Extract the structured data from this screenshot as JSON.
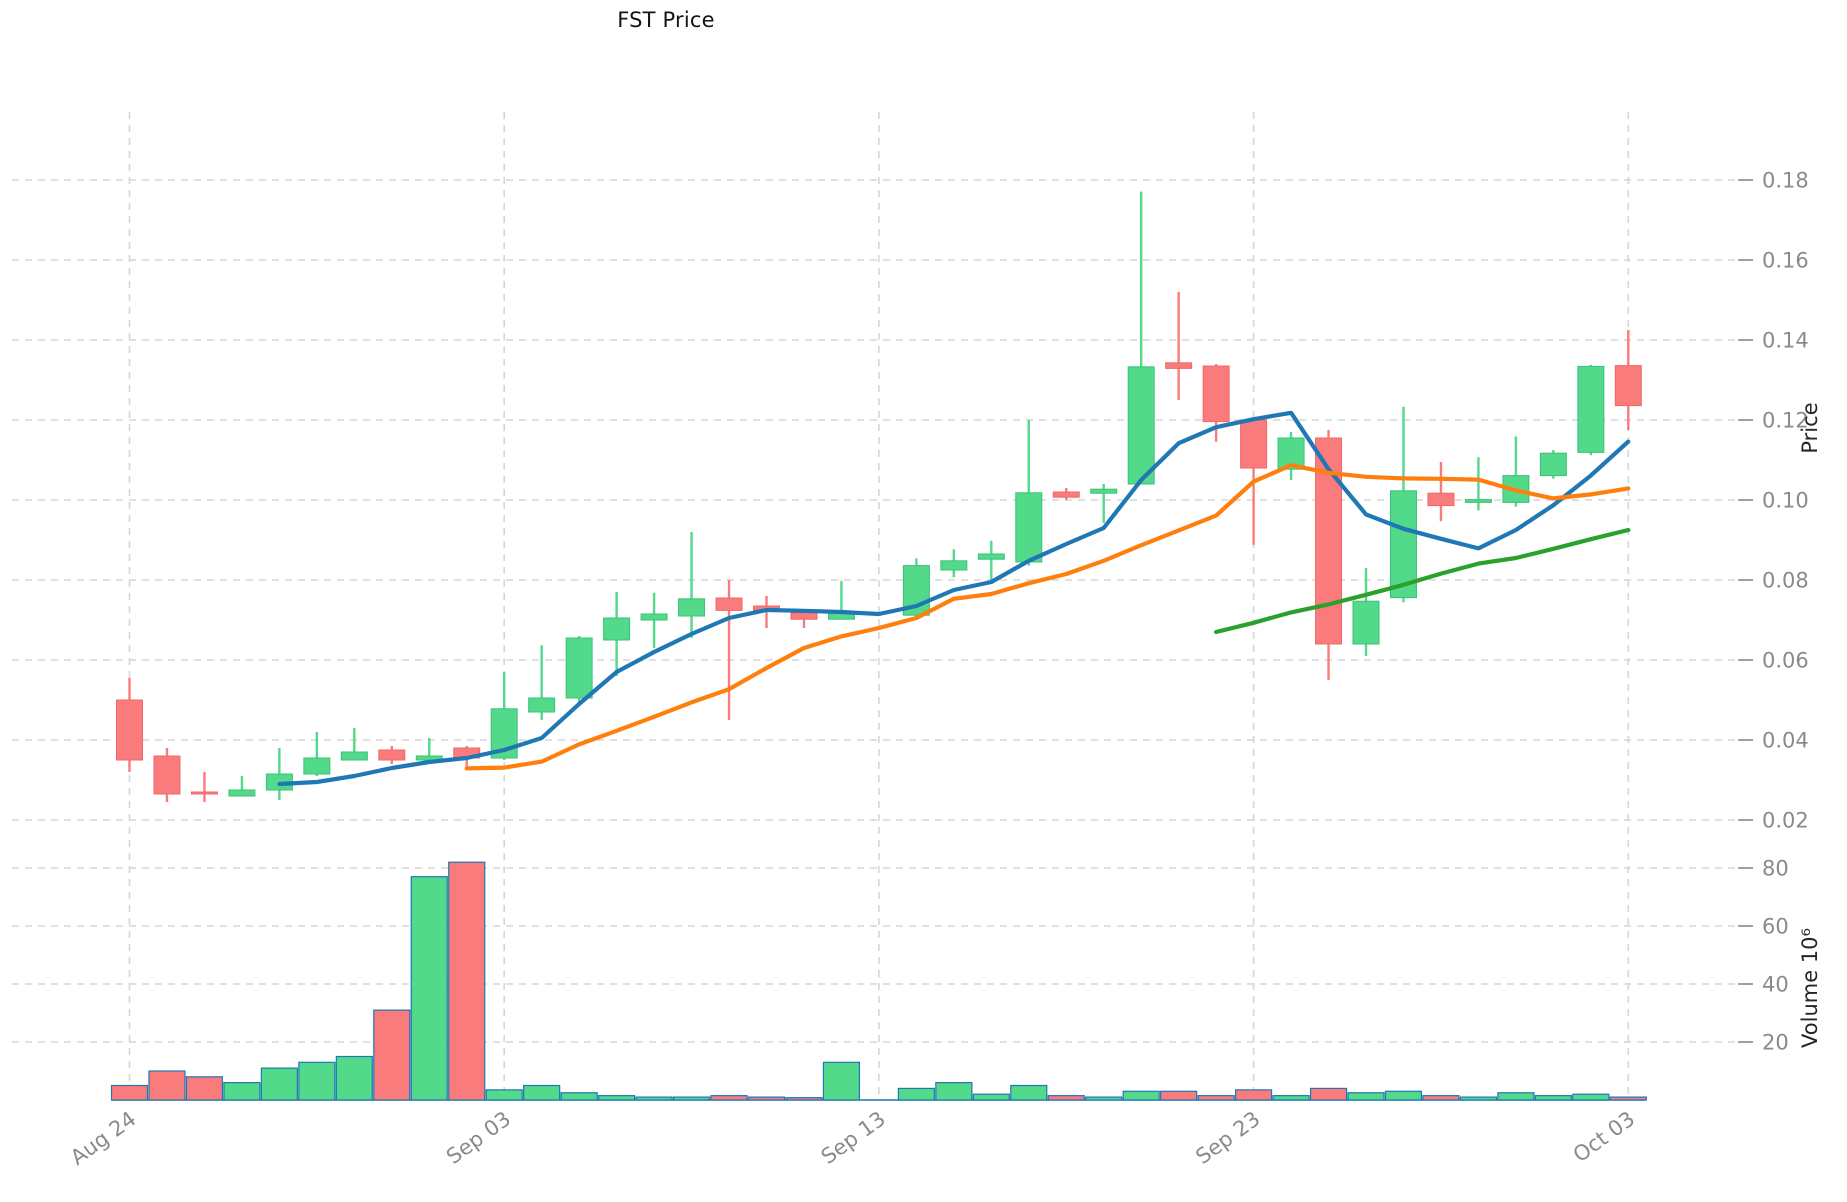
{
  "title": "FST Price",
  "axes": {
    "price_label": "Price",
    "volume_label": "Volume  10⁶",
    "price_ticks": [
      0.18,
      0.16,
      0.14,
      0.12,
      0.1,
      0.08,
      0.06,
      0.04,
      0.02
    ],
    "volume_ticks": [
      80,
      60,
      40,
      20
    ],
    "date_ticks": [
      {
        "label": "Aug 24",
        "index": 0
      },
      {
        "label": "Sep 03",
        "index": 10
      },
      {
        "label": "Sep 13",
        "index": 20
      },
      {
        "label": "Sep 23",
        "index": 30
      },
      {
        "label": "Oct 03",
        "index": 40
      }
    ]
  },
  "colors": {
    "up": "#52d98a",
    "down": "#f97b7b",
    "up_edge": "#3cc176",
    "down_edge": "#f06868",
    "sma5": "#1f77b4",
    "sma10": "#ff7f0e",
    "sma30": "#2ca02c",
    "volume_bar_edge": "#1f77b4",
    "grid": "#d6d6d6",
    "tick_text": "#8a8a8a"
  },
  "chart_data": {
    "type": "candlestick+volume",
    "title": "FST Price",
    "ylabel_right": "Price",
    "ylabel_volume": "Volume 10^6",
    "price_axis_ticks": [
      0.02,
      0.04,
      0.06,
      0.08,
      0.1,
      0.12,
      0.14,
      0.16,
      0.18
    ],
    "volume_axis_ticks_millions": [
      20,
      40,
      60,
      80
    ],
    "grid": true,
    "legend_position": "none",
    "dates": [
      "Aug 24",
      "Aug 25",
      "Aug 26",
      "Aug 27",
      "Aug 28",
      "Aug 29",
      "Aug 30",
      "Aug 31",
      "Sep 01",
      "Sep 02",
      "Sep 03",
      "Sep 04",
      "Sep 05",
      "Sep 06",
      "Sep 07",
      "Sep 08",
      "Sep 09",
      "Sep 10",
      "Sep 11",
      "Sep 12",
      "Sep 13",
      "Sep 14",
      "Sep 15",
      "Sep 16",
      "Sep 17",
      "Sep 18",
      "Sep 19",
      "Sep 20",
      "Sep 21",
      "Sep 22",
      "Sep 23",
      "Sep 24",
      "Sep 25",
      "Sep 26",
      "Sep 27",
      "Sep 28",
      "Sep 29",
      "Sep 30",
      "Oct 01",
      "Oct 02",
      "Oct 03"
    ],
    "ohlc": [
      [
        0.05,
        0.0555,
        0.032,
        0.035
      ],
      [
        0.036,
        0.038,
        0.0245,
        0.0265
      ],
      [
        0.027,
        0.032,
        0.0245,
        0.0265
      ],
      [
        0.026,
        0.031,
        0.026,
        0.0275
      ],
      [
        0.0275,
        0.038,
        0.025,
        0.0315
      ],
      [
        0.0315,
        0.042,
        0.031,
        0.0355
      ],
      [
        0.035,
        0.043,
        0.035,
        0.037
      ],
      [
        0.0375,
        0.0385,
        0.034,
        0.035
      ],
      [
        0.035,
        0.0405,
        0.0345,
        0.036
      ],
      [
        0.038,
        0.0385,
        0.033,
        0.0355
      ],
      [
        0.0355,
        0.057,
        0.035,
        0.0478
      ],
      [
        0.047,
        0.0637,
        0.045,
        0.0505
      ],
      [
        0.0505,
        0.066,
        0.049,
        0.0655
      ],
      [
        0.065,
        0.077,
        0.056,
        0.0705
      ],
      [
        0.07,
        0.0768,
        0.063,
        0.0715
      ],
      [
        0.071,
        0.092,
        0.0655,
        0.0753
      ],
      [
        0.0755,
        0.08,
        0.045,
        0.0724
      ],
      [
        0.0735,
        0.076,
        0.068,
        0.0725
      ],
      [
        0.0718,
        0.0718,
        0.068,
        0.0702
      ],
      [
        0.0702,
        0.0798,
        0.0702,
        0.0718
      ],
      null,
      [
        0.0712,
        0.0854,
        0.0705,
        0.0836
      ],
      [
        0.0825,
        0.0877,
        0.0807,
        0.0848
      ],
      [
        0.0852,
        0.0898,
        0.0795,
        0.0865
      ],
      [
        0.0845,
        0.12,
        0.0836,
        0.1018
      ],
      [
        0.102,
        0.103,
        0.1,
        0.1007
      ],
      [
        0.1017,
        0.104,
        0.0943,
        0.1027
      ],
      [
        0.104,
        0.1771,
        0.104,
        0.1333
      ],
      [
        0.1343,
        0.152,
        0.125,
        0.1329
      ],
      [
        0.1335,
        0.134,
        0.1146,
        0.1196
      ],
      [
        0.12,
        0.1205,
        0.0888,
        0.108
      ],
      [
        0.1077,
        0.117,
        0.105,
        0.1155
      ],
      [
        0.1155,
        0.1175,
        0.055,
        0.064
      ],
      [
        0.064,
        0.083,
        0.061,
        0.0747
      ],
      [
        0.0756,
        0.1233,
        0.0744,
        0.1023
      ],
      [
        0.1017,
        0.1095,
        0.0947,
        0.0986
      ],
      [
        0.0994,
        0.1107,
        0.0974,
        0.1001
      ],
      [
        0.0994,
        0.1159,
        0.0983,
        0.1061
      ],
      [
        0.1061,
        0.1125,
        0.1053,
        0.1117
      ],
      [
        0.1119,
        0.1338,
        0.1112,
        0.1334
      ],
      [
        0.1336,
        0.1425,
        0.1175,
        0.1236
      ]
    ],
    "volume_millions": [
      5,
      10,
      8,
      6,
      11,
      13,
      15,
      31,
      77,
      82,
      3.5,
      5,
      2.5,
      1.5,
      1,
      1,
      1.5,
      1,
      0.8,
      13,
      0,
      4,
      6,
      2,
      5,
      1.5,
      1,
      3,
      3,
      1.5,
      3.5,
      1.5,
      4,
      2.5,
      3,
      1.5,
      1,
      2.5,
      1.5,
      2,
      1
    ],
    "series": [
      {
        "name": "SMA5",
        "color": "#1f77b4",
        "start_index": 4,
        "values": [
          0.029,
          0.0295,
          0.031,
          0.033,
          0.0345,
          0.0355,
          0.0375,
          0.0405,
          0.049,
          0.057,
          0.062,
          0.0665,
          0.0705,
          0.0725,
          0.0723,
          0.072,
          0.0715,
          0.0735,
          0.0775,
          0.0795,
          0.0848,
          0.089,
          0.093,
          0.105,
          0.1142,
          0.1182,
          0.1202,
          0.1218,
          0.1077,
          0.0964,
          0.0928,
          0.0903,
          0.0879,
          0.0925,
          0.0987,
          0.1061,
          0.1146
        ]
      },
      {
        "name": "SMA10",
        "color": "#ff7f0e",
        "start_index": 9,
        "values": [
          0.0329,
          0.0331,
          0.0346,
          0.0389,
          0.0423,
          0.0458,
          0.0494,
          0.0527,
          0.058,
          0.063,
          0.0659,
          0.068,
          0.0705,
          0.0753,
          0.0765,
          0.0792,
          0.0815,
          0.0848,
          0.0887,
          0.0924,
          0.0961,
          0.1046,
          0.1087,
          0.1068,
          0.1058,
          0.1054,
          0.1053,
          0.1051,
          0.1024,
          0.1004,
          0.1014,
          0.1029
        ]
      },
      {
        "name": "SMA30",
        "color": "#2ca02c",
        "start_index": 29,
        "values": [
          0.067,
          0.0693,
          0.0719,
          0.0739,
          0.0763,
          0.0788,
          0.0816,
          0.0841,
          0.0855,
          0.0878,
          0.0902,
          0.0925
        ]
      }
    ]
  }
}
